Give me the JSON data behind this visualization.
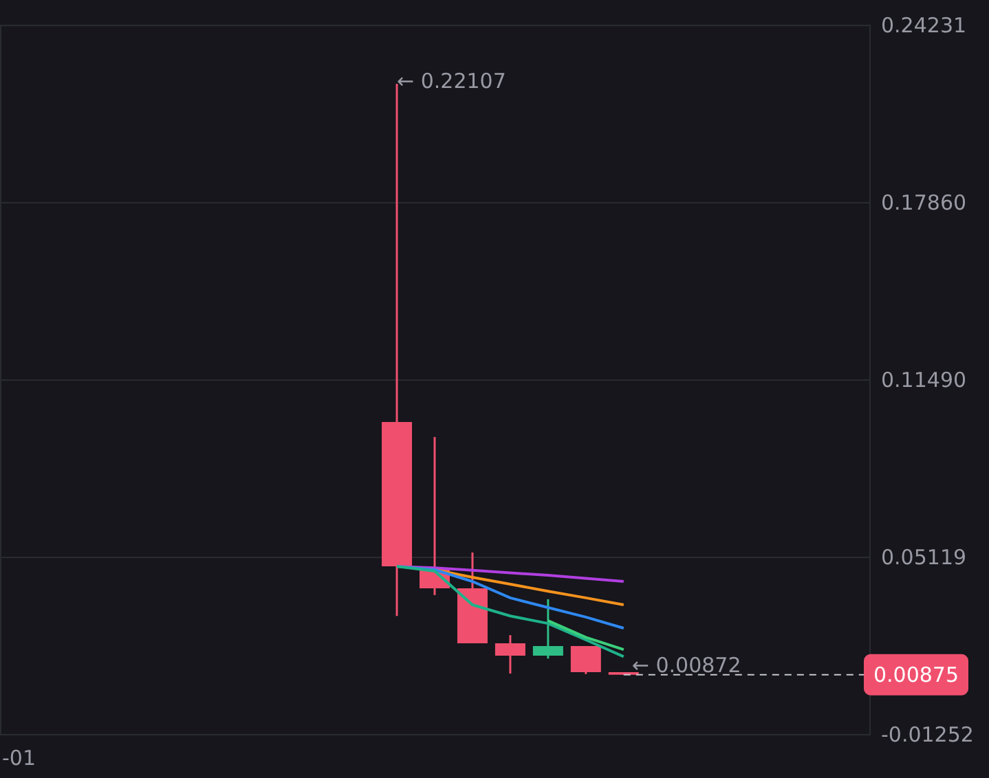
{
  "chart_data": {
    "type": "candlestick",
    "categories": [
      "-01",
      null,
      null,
      null,
      null,
      null,
      null,
      null,
      null,
      null,
      null,
      null,
      null,
      null,
      null,
      null,
      null,
      null,
      null,
      null,
      null,
      null,
      null
    ],
    "ohlc": [
      null,
      null,
      null,
      null,
      null,
      null,
      null,
      null,
      null,
      null,
      [
        0.0996,
        0.22107,
        0.0299,
        0.0477
      ],
      [
        0.0472,
        0.0942,
        0.0374,
        0.0398
      ],
      [
        0.0398,
        0.0527,
        0.0201,
        0.0201
      ],
      [
        0.0201,
        0.023,
        0.0092,
        0.0156
      ],
      [
        0.0156,
        0.0359,
        0.0146,
        0.0191
      ],
      [
        0.0191,
        0.0191,
        0.009,
        0.0097
      ],
      [
        0.0097,
        0.0097,
        0.00872,
        0.00875
      ],
      null,
      null,
      null,
      null,
      null,
      null
    ],
    "colors": [
      null,
      null,
      null,
      null,
      null,
      null,
      null,
      null,
      null,
      null,
      "#f0506e",
      "#f0506e",
      "#f0506e",
      "#f0506e",
      "#2ebd85",
      "#f0506e",
      "#f0506e",
      null,
      null,
      null,
      null,
      null,
      null
    ],
    "series": [
      {
        "type": "line",
        "color": "#b13fe0",
        "values": [
          null,
          null,
          null,
          null,
          null,
          null,
          null,
          null,
          null,
          null,
          0.0477,
          0.0472,
          0.0463,
          0.0454,
          0.0445,
          0.0434,
          0.0423,
          null,
          null,
          null,
          null,
          null,
          null
        ]
      },
      {
        "type": "line",
        "color": "#f5921e",
        "values": [
          null,
          null,
          null,
          null,
          null,
          null,
          null,
          null,
          null,
          null,
          0.0477,
          0.0465,
          0.0438,
          0.0413,
          0.0388,
          0.0364,
          0.0339,
          null,
          null,
          null,
          null,
          null,
          null
        ]
      },
      {
        "type": "line",
        "color": "#2f88f0",
        "values": [
          null,
          null,
          null,
          null,
          null,
          null,
          null,
          null,
          null,
          null,
          0.0477,
          0.0465,
          0.0423,
          0.0364,
          0.0329,
          0.0295,
          0.0255,
          null,
          null,
          null,
          null,
          null,
          null
        ]
      },
      {
        "type": "line",
        "color": "#1fb28a",
        "values": [
          null,
          null,
          null,
          null,
          null,
          null,
          null,
          null,
          null,
          null,
          0.0477,
          0.046,
          0.0339,
          0.0299,
          0.0272,
          0.0213,
          0.0153,
          null,
          null,
          null,
          null,
          null,
          null
        ]
      },
      {
        "type": "line",
        "color": "#3ccf7c",
        "values": [
          null,
          null,
          null,
          null,
          null,
          null,
          null,
          null,
          null,
          null,
          null,
          null,
          null,
          null,
          0.0282,
          0.0222,
          0.0178,
          null,
          null,
          null,
          null,
          null,
          null
        ]
      }
    ],
    "ylim": [
      -0.01252,
      0.24231
    ],
    "yticks": [
      {
        "value": -0.01252,
        "label": "-0.01252"
      },
      {
        "value": 0.05119,
        "label": "0.05119"
      },
      {
        "value": 0.1149,
        "label": "0.11490"
      },
      {
        "value": 0.1786,
        "label": "0.17860"
      },
      {
        "value": 0.24231,
        "label": "0.24231"
      }
    ],
    "grid": "y",
    "legend": false,
    "annotations": [
      "← 0.22107",
      "← 0.00872"
    ],
    "ref_lines": [
      {
        "axis": "y",
        "value": 0.00875,
        "label": "0.00875",
        "color": "#c8c8d0",
        "line_style": "dashed"
      }
    ]
  }
}
